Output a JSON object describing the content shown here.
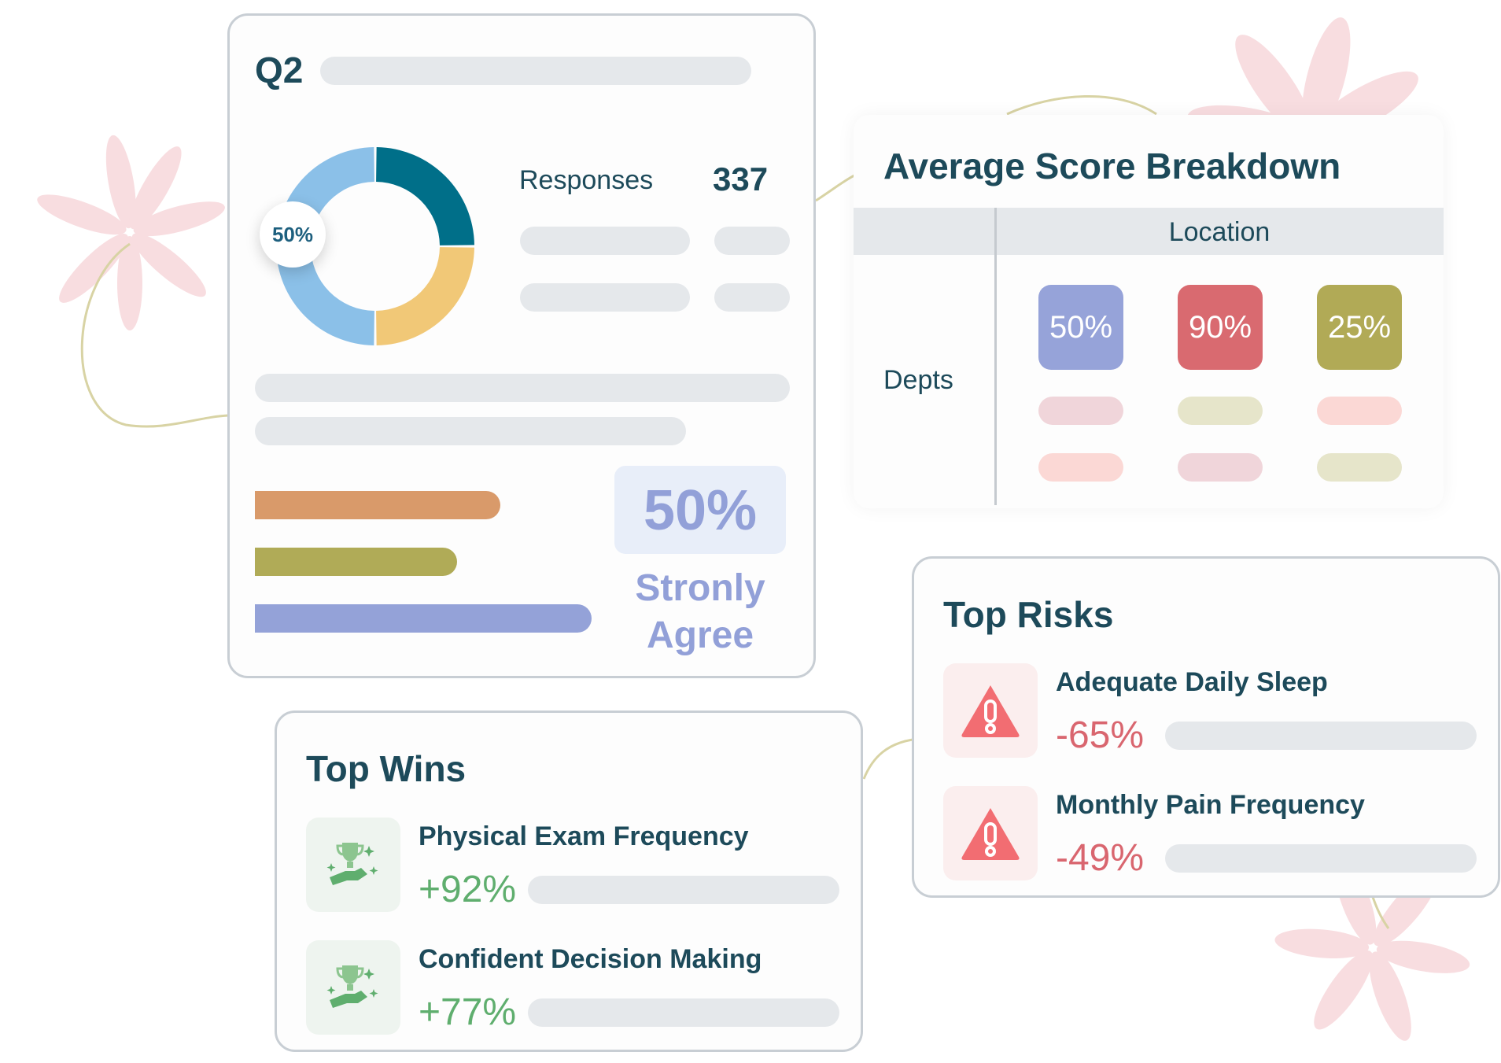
{
  "colors": {
    "teal": "#006f89",
    "yellow": "#f1c877",
    "light_blue": "#8bc0e8",
    "orange_bar": "#d99a6a",
    "olive_bar": "#b0ab57",
    "periwinkle_bar": "#94a2d8",
    "win_green": "#5fae6e",
    "risk_red": "#d9666f",
    "flower_pink": "#f8dde0"
  },
  "q2_card": {
    "title": "Q2",
    "donut_center_label": "50%",
    "donut_segments": [
      {
        "name": "teal",
        "value": 0.25,
        "color": "#006f89"
      },
      {
        "name": "yellow",
        "value": 0.25,
        "color": "#f1c877"
      },
      {
        "name": "light-blue",
        "value": 0.5,
        "color": "#8bc0e8"
      }
    ],
    "responses_label": "Responses",
    "responses_value": "337",
    "bars": [
      {
        "name": "orange",
        "fraction": 0.73,
        "color": "#d99a6a"
      },
      {
        "name": "olive",
        "fraction": 0.6,
        "color": "#b0ab57"
      },
      {
        "name": "periwinkle",
        "fraction": 1.0,
        "color": "#94a2d8"
      }
    ],
    "highlight_value": "50%",
    "highlight_label_line1": "Stronly",
    "highlight_label_line2": "Agree"
  },
  "score_card": {
    "title": "Average Score Breakdown",
    "column_header": "Location",
    "row_header": "Depts",
    "tiles": [
      {
        "label": "50%",
        "color": "#96a3d9"
      },
      {
        "label": "90%",
        "color": "#d96a70"
      },
      {
        "label": "25%",
        "color": "#b1aa56"
      }
    ]
  },
  "top_wins": {
    "title": "Top Wins",
    "items": [
      {
        "label": "Physical Exam Frequency",
        "value": "+92%",
        "icon": "trophy-handshake-icon"
      },
      {
        "label": "Confident Decision Making",
        "value": "+77%",
        "icon": "trophy-handshake-icon"
      }
    ]
  },
  "top_risks": {
    "title": "Top Risks",
    "items": [
      {
        "label": "Adequate Daily Sleep",
        "value": "-65%",
        "icon": "warning-triangle-icon"
      },
      {
        "label": "Monthly Pain Frequency",
        "value": "-49%",
        "icon": "warning-triangle-icon"
      }
    ]
  }
}
